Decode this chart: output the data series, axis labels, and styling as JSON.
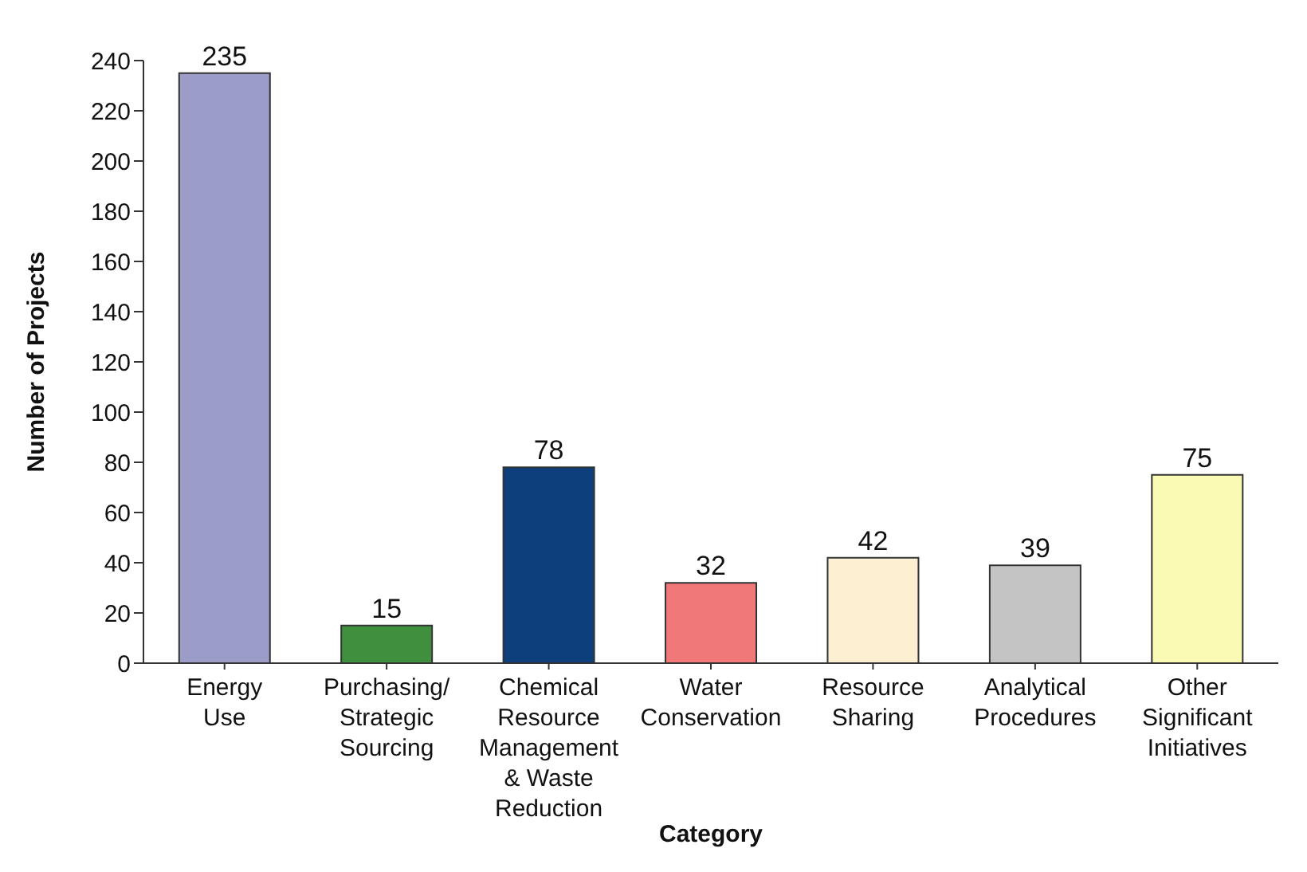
{
  "chart_data": {
    "type": "bar",
    "xlabel": "Category",
    "ylabel": "Number of Projects",
    "categories": [
      "Energy Use",
      "Purchasing/ Strategic Sourcing",
      "Chemical Resource Management & Waste Reduction",
      "Water Conservation",
      "Resource Sharing",
      "Analytical Procedures",
      "Other Significant Initiatives"
    ],
    "values": [
      235,
      15,
      78,
      32,
      42,
      39,
      75
    ],
    "colors": [
      "#9c9cc8",
      "#3f8f3f",
      "#0d3f7d",
      "#f07878",
      "#fcefd2",
      "#c4c4c4",
      "#fafab4"
    ],
    "ylim": [
      0,
      240
    ],
    "yticks": [
      0,
      20,
      40,
      60,
      80,
      100,
      120,
      140,
      160,
      180,
      200,
      220,
      240
    ],
    "data_labels": true,
    "grid": false,
    "legend": false
  }
}
